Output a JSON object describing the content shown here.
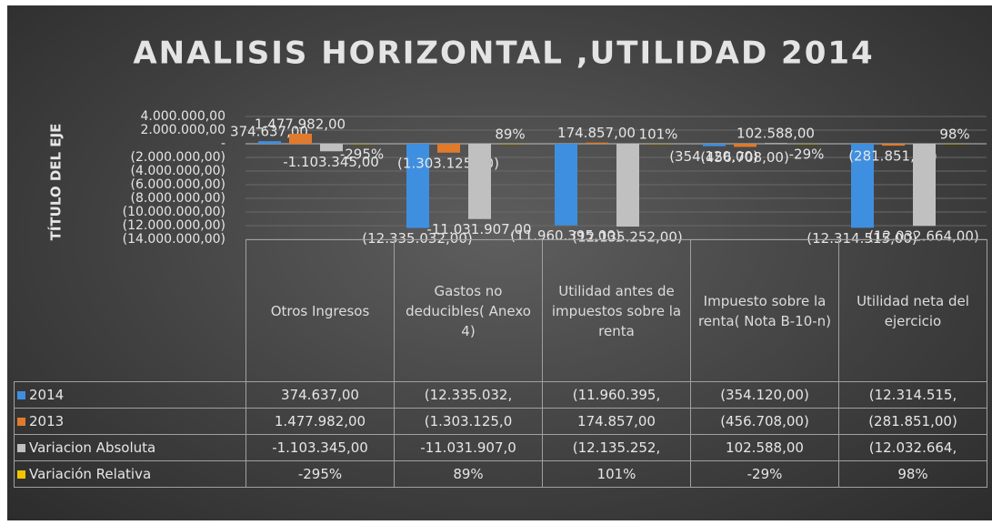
{
  "chart_data": {
    "type": "bar",
    "title": "ANALISIS HORIZONTAL ,UTILIDAD 2014",
    "y_label": "TÍTULO DEL EJE",
    "categories": [
      "Otros Ingresos",
      "Gastos no deducibles( Anexo 4)",
      "Utilidad antes de impuestos sobre la renta",
      "Impuesto sobre la renta( Nota B-10-n)",
      "Utilidad neta del ejercicio"
    ],
    "ylim": [
      -14000000,
      4000000
    ],
    "yticks": [
      {
        "value": 4000000,
        "label": "4.000.000,00"
      },
      {
        "value": 2000000,
        "label": "2.000.000,00"
      },
      {
        "value": 0,
        "label": "-"
      },
      {
        "value": -2000000,
        "label": "(2.000.000,00)"
      },
      {
        "value": -4000000,
        "label": "(4.000.000,00)"
      },
      {
        "value": -6000000,
        "label": "(6.000.000,00)"
      },
      {
        "value": -8000000,
        "label": "(8.000.000,00)"
      },
      {
        "value": -10000000,
        "label": "(10.000.000,00)"
      },
      {
        "value": -12000000,
        "label": "(12.000.000,00)"
      },
      {
        "value": -14000000,
        "label": "(14.000.000,00)"
      }
    ],
    "grid": true,
    "series": [
      {
        "name": "2014",
        "color": "#3f8fe0",
        "values": [
          374637,
          -12335032,
          -11960395,
          -354120,
          -12314515
        ],
        "value_labels": [
          "374.637,00",
          "(12.335.032,00)",
          "(11.960.395,00)",
          "(354.120,00)",
          "(12.314.515,00)"
        ],
        "table_labels": [
          "374.637,00",
          "(12.335.032,",
          "(11.960.395,",
          "(354.120,00)",
          "(12.314.515,"
        ]
      },
      {
        "name": "2013",
        "color": "#e07a2c",
        "values": [
          1477982,
          -1303125,
          174857,
          -456708,
          -281851
        ],
        "value_labels": [
          "1.477.982,00",
          "(1.303.125,00)",
          "174.857,00",
          "(456.708,00)",
          "(281.851,00)"
        ],
        "table_labels": [
          "1.477.982,00",
          "(1.303.125,0",
          "174.857,00",
          "(456.708,00)",
          "(281.851,00)"
        ]
      },
      {
        "name": "Variacion Absoluta",
        "color": "#c0c0c0",
        "values": [
          -1103345,
          -11031907,
          -12135252,
          102588,
          -12032664
        ],
        "value_labels": [
          "-1.103.345,00",
          "-11.031.907,00",
          "(12.135.252,00)",
          "102.588,00",
          "(12.032.664,00)"
        ],
        "table_labels": [
          "-1.103.345,00",
          "-11.031.907,0",
          "(12.135.252,",
          "102.588,00",
          "(12.032.664,"
        ]
      },
      {
        "name": "Variación Relativa",
        "color": "#f0c400",
        "values": [
          -295,
          89,
          101,
          -29,
          98
        ],
        "value_labels": [
          "-295%",
          "89%",
          "101%",
          "-29%",
          "98%"
        ],
        "table_labels": [
          "-295%",
          "89%",
          "101%",
          "-29%",
          "98%"
        ]
      }
    ]
  }
}
